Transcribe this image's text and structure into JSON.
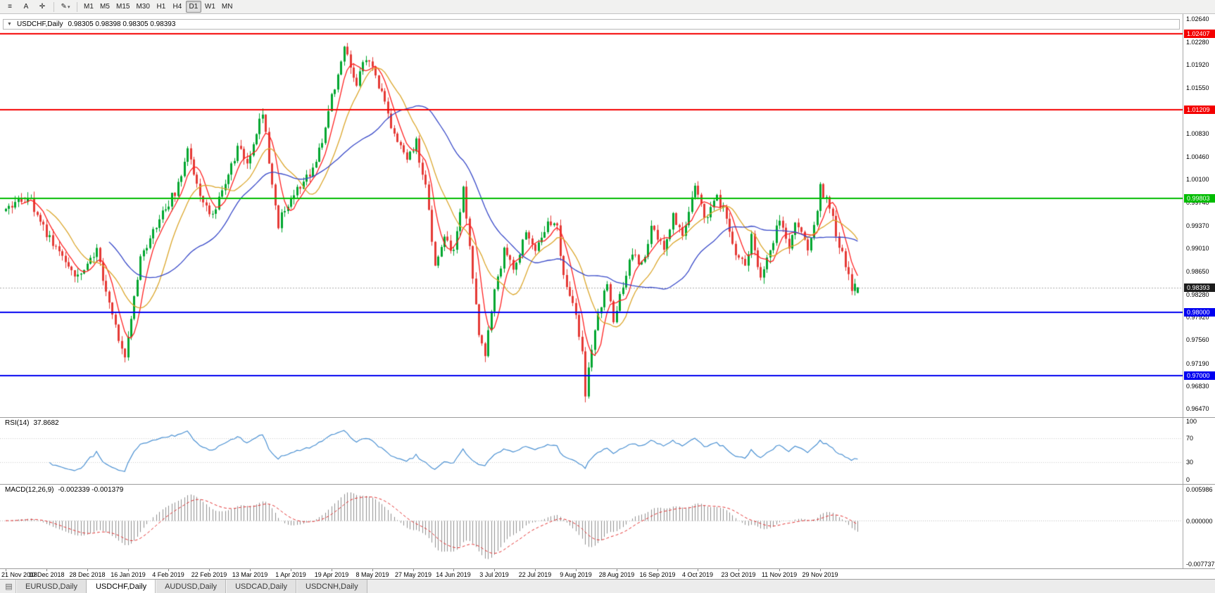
{
  "toolbar": {
    "timeframes": [
      "M1",
      "M5",
      "M15",
      "M30",
      "H1",
      "H4",
      "D1",
      "W1",
      "MN"
    ],
    "active_timeframe": "D1"
  },
  "icons": {
    "menu": "≡",
    "text_tool": "A",
    "crosshair": "✛",
    "pencil": "✎",
    "dropdown": "▾",
    "collapse": "▼",
    "tab_list": "▤"
  },
  "chart": {
    "symbol": "USDCHF,Daily",
    "ohlc_text": "0.98305 0.98398 0.98305 0.98393",
    "open": "0.98305",
    "high": "0.98398",
    "low": "0.98305",
    "close": "0.98393"
  },
  "price_axis_labels": [
    "1.02640",
    "1.02280",
    "1.01920",
    "1.01550",
    "1.01190",
    "1.00830",
    "1.00460",
    "1.00100",
    "0.99740",
    "0.99370",
    "0.99010",
    "0.98650",
    "0.98280",
    "0.97920",
    "0.97560",
    "0.97190",
    "0.96830",
    "0.96470"
  ],
  "levels": [
    {
      "price": 1.02407,
      "label": "1.02407",
      "color": "#f40000"
    },
    {
      "price": 1.01209,
      "label": "1.01209",
      "color": "#f40000"
    },
    {
      "price": 0.99803,
      "label": "0.99803",
      "color": "#00bc00"
    },
    {
      "price": 0.98,
      "label": "0.98000",
      "color": "#0000f0"
    },
    {
      "price": 0.97,
      "label": "0.97000",
      "color": "#0000f0"
    }
  ],
  "current_price": {
    "value": 0.98393,
    "label": "0.98393",
    "badge_color": "#1c1c1c"
  },
  "rsi": {
    "name": "RSI(14)",
    "value": "37.8682",
    "period": 14,
    "color": "#4a90d2",
    "levels": [
      70,
      30
    ],
    "axis_labels": [
      {
        "v": 100,
        "t": "100"
      },
      {
        "v": 70,
        "t": "70"
      },
      {
        "v": 30,
        "t": "30"
      },
      {
        "v": 0,
        "t": "0"
      }
    ]
  },
  "macd": {
    "name": "MACD(12,26,9)",
    "values": "-0.002339 -0.001379",
    "fast": 12,
    "slow": 26,
    "signal": 9,
    "signal_color": "#e23030",
    "histogram_color": "#8f8f8f",
    "axis_top": "0.005986",
    "axis_zero": "0.000000",
    "axis_bottom": "-0.007737"
  },
  "date_labels": [
    "21 Nov 2018",
    "10 Dec 2018",
    "28 Dec 2018",
    "16 Jan 2019",
    "4 Feb 2019",
    "22 Feb 2019",
    "13 Mar 2019",
    "1 Apr 2019",
    "19 Apr 2019",
    "8 May 2019",
    "27 May 2019",
    "14 Jun 2019",
    "3 Jul 2019",
    "22 Jul 2019",
    "9 Aug 2019",
    "28 Aug 2019",
    "16 Sep 2019",
    "4 Oct 2019",
    "23 Oct 2019",
    "11 Nov 2019",
    "29 Nov 2019"
  ],
  "tabs": [
    {
      "label": "EURUSD,Daily",
      "active": false
    },
    {
      "label": "USDCHF,Daily",
      "active": true
    },
    {
      "label": "AUDUSD,Daily",
      "active": false
    },
    {
      "label": "USDCAD,Daily",
      "active": false
    },
    {
      "label": "USDCNH,Daily",
      "active": false
    }
  ],
  "chart_data": {
    "type": "candlestick",
    "symbol": "USDCHF",
    "timeframe": "Daily",
    "bar_count": 273,
    "bars_per_label": 13,
    "price_range_top": 1.0272,
    "price_range_bottom": 0.9634,
    "last_bar": {
      "o": 0.98305,
      "h": 0.98398,
      "l": 0.98305,
      "c": 0.98393
    },
    "colors": {
      "up": "#00a62f",
      "down": "#e53935"
    },
    "ma": [
      {
        "period": 6,
        "color": "#ff2020"
      },
      {
        "period": 14,
        "color": "#dba62b"
      },
      {
        "period": 34,
        "color": "#3748c8"
      }
    ],
    "waypoints": [
      [
        0,
        0.996
      ],
      [
        7,
        0.9985
      ],
      [
        15,
        0.9905
      ],
      [
        23,
        0.9855
      ],
      [
        29,
        0.99
      ],
      [
        34,
        0.979
      ],
      [
        38,
        0.9725
      ],
      [
        43,
        0.989
      ],
      [
        50,
        0.9955
      ],
      [
        55,
        1.0
      ],
      [
        58,
        1.0058
      ],
      [
        62,
        0.9985
      ],
      [
        66,
        0.995
      ],
      [
        70,
        1.0005
      ],
      [
        74,
        1.0058
      ],
      [
        77,
        1.004
      ],
      [
        82,
        1.0118
      ],
      [
        85,
        1.0005
      ],
      [
        87,
        0.994
      ],
      [
        91,
        0.9985
      ],
      [
        95,
        1.0
      ],
      [
        101,
        1.0065
      ],
      [
        104,
        1.014
      ],
      [
        108,
        1.0215
      ],
      [
        112,
        1.016
      ],
      [
        115,
        1.0205
      ],
      [
        120,
        1.015
      ],
      [
        124,
        1.008
      ],
      [
        128,
        1.0045
      ],
      [
        131,
        1.0068
      ],
      [
        134,
        0.9995
      ],
      [
        137,
        0.9875
      ],
      [
        140,
        0.992
      ],
      [
        143,
        0.9895
      ],
      [
        146,
        0.9995
      ],
      [
        148,
        0.9905
      ],
      [
        151,
        0.977
      ],
      [
        153,
        0.973
      ],
      [
        156,
        0.984
      ],
      [
        159,
        0.9895
      ],
      [
        162,
        0.987
      ],
      [
        166,
        0.9925
      ],
      [
        169,
        0.99
      ],
      [
        173,
        0.9945
      ],
      [
        176,
        0.993
      ],
      [
        178,
        0.9855
      ],
      [
        181,
        0.982
      ],
      [
        184,
        0.9735
      ],
      [
        185,
        0.9672
      ],
      [
        187,
        0.9745
      ],
      [
        189,
        0.98
      ],
      [
        192,
        0.9845
      ],
      [
        194,
        0.979
      ],
      [
        196,
        0.9825
      ],
      [
        200,
        0.9895
      ],
      [
        203,
        0.9875
      ],
      [
        206,
        0.993
      ],
      [
        210,
        0.9905
      ],
      [
        213,
        0.9955
      ],
      [
        216,
        0.9925
      ],
      [
        220,
        0.9995
      ],
      [
        223,
        0.995
      ],
      [
        227,
        0.998
      ],
      [
        230,
        0.9955
      ],
      [
        232,
        0.9905
      ],
      [
        236,
        0.9875
      ],
      [
        238,
        0.992
      ],
      [
        241,
        0.9855
      ],
      [
        243,
        0.9885
      ],
      [
        247,
        0.9945
      ],
      [
        250,
        0.9905
      ],
      [
        252,
        0.9935
      ],
      [
        256,
        0.9905
      ],
      [
        258,
        0.9935
      ],
      [
        260,
        1.0
      ],
      [
        264,
        0.995
      ],
      [
        266,
        0.9905
      ],
      [
        268,
        0.9875
      ],
      [
        270,
        0.984
      ],
      [
        272,
        0.98393
      ]
    ]
  }
}
